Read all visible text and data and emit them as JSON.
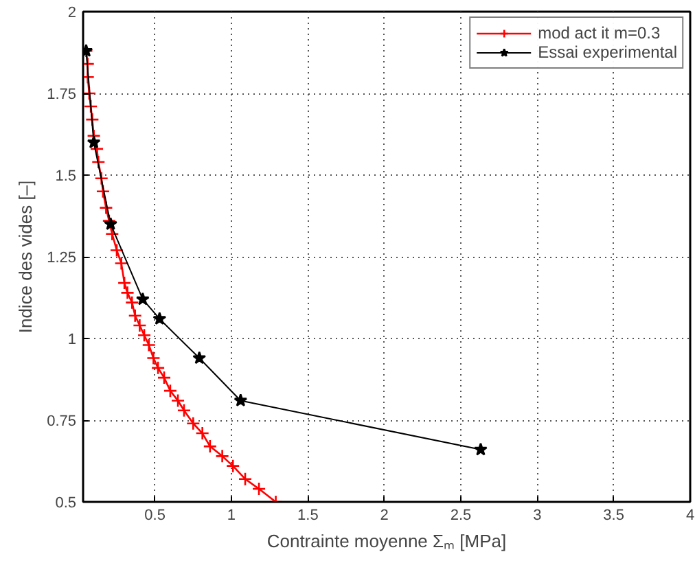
{
  "chart_data": {
    "type": "line",
    "xlabel": "Contrainte moyenne Σₘ [MPa]",
    "ylabel": "Indice des vides [–]",
    "xlim": [
      0.03,
      4
    ],
    "ylim": [
      0.5,
      2
    ],
    "xticks": [
      0.5,
      1,
      1.5,
      2,
      2.5,
      3,
      3.5,
      4
    ],
    "yticks": [
      0.5,
      0.75,
      1,
      1.25,
      1.5,
      1.75,
      2
    ],
    "grid": true,
    "legend": "top right",
    "line_style": "solid",
    "series": [
      {
        "name": "mod act it m=0.3",
        "color": "#ff0000",
        "marker": "cross",
        "x": [
          0.05,
          0.06,
          0.06,
          0.07,
          0.08,
          0.09,
          0.1,
          0.12,
          0.13,
          0.15,
          0.16,
          0.18,
          0.2,
          0.22,
          0.25,
          0.28,
          0.3,
          0.32,
          0.35,
          0.37,
          0.4,
          0.43,
          0.46,
          0.49,
          0.52,
          0.56,
          0.6,
          0.65,
          0.69,
          0.75,
          0.81,
          0.86,
          0.94,
          1.01,
          1.09,
          1.18,
          1.29
        ],
        "values": [
          1.88,
          1.84,
          1.8,
          1.75,
          1.71,
          1.67,
          1.62,
          1.58,
          1.54,
          1.49,
          1.45,
          1.4,
          1.36,
          1.32,
          1.27,
          1.23,
          1.17,
          1.14,
          1.11,
          1.07,
          1.04,
          1.01,
          0.98,
          0.94,
          0.91,
          0.88,
          0.84,
          0.81,
          0.78,
          0.74,
          0.71,
          0.67,
          0.64,
          0.61,
          0.57,
          0.54,
          0.5
        ]
      },
      {
        "name": "Essai experimental",
        "color": "#000000",
        "marker": "star",
        "x": [
          0.05,
          0.1,
          0.21,
          0.42,
          0.53,
          0.79,
          1.06,
          2.63
        ],
        "values": [
          1.88,
          1.6,
          1.35,
          1.12,
          1.06,
          0.94,
          0.81,
          0.66
        ]
      }
    ]
  }
}
